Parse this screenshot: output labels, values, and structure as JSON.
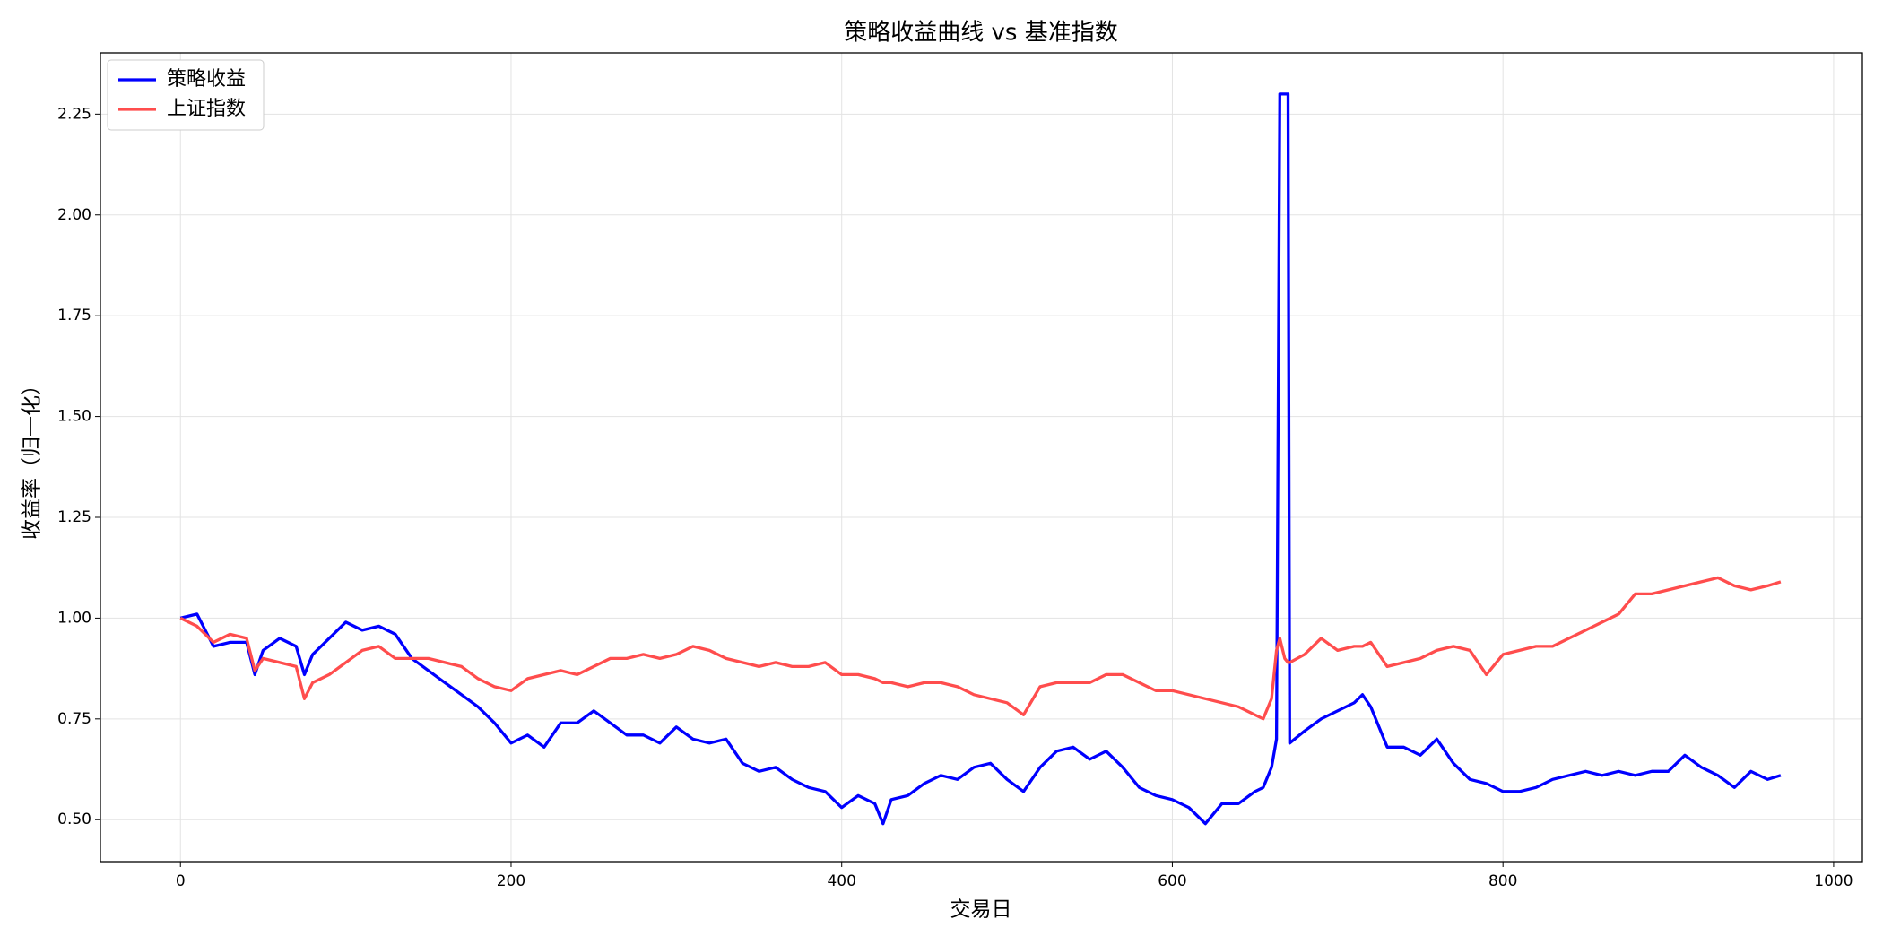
{
  "chart_data": {
    "type": "line",
    "title": "策略收益曲线 vs 基准指数",
    "xlabel": "交易日",
    "ylabel": "收益率（归一化）",
    "x": [
      0,
      10,
      20,
      30,
      40,
      45,
      50,
      60,
      70,
      75,
      80,
      90,
      100,
      110,
      120,
      130,
      140,
      150,
      160,
      170,
      180,
      190,
      200,
      210,
      220,
      230,
      240,
      250,
      260,
      270,
      280,
      290,
      300,
      310,
      320,
      330,
      340,
      350,
      360,
      370,
      380,
      390,
      400,
      410,
      420,
      425,
      430,
      440,
      450,
      460,
      470,
      480,
      490,
      500,
      510,
      520,
      530,
      540,
      550,
      560,
      570,
      580,
      590,
      600,
      610,
      620,
      630,
      640,
      650,
      655,
      660,
      663,
      665,
      668,
      670,
      671,
      680,
      690,
      700,
      710,
      715,
      720,
      730,
      740,
      750,
      760,
      770,
      780,
      790,
      800,
      810,
      820,
      830,
      840,
      850,
      860,
      870,
      880,
      890,
      900,
      910,
      920,
      930,
      940,
      950,
      960,
      968
    ],
    "series": [
      {
        "name": "策略收益",
        "color": "#0000ff",
        "values": [
          1.0,
          1.01,
          0.93,
          0.94,
          0.94,
          0.86,
          0.92,
          0.95,
          0.93,
          0.86,
          0.91,
          0.95,
          0.99,
          0.97,
          0.98,
          0.96,
          0.9,
          0.87,
          0.84,
          0.81,
          0.78,
          0.74,
          0.69,
          0.71,
          0.68,
          0.74,
          0.74,
          0.77,
          0.74,
          0.71,
          0.71,
          0.69,
          0.73,
          0.7,
          0.69,
          0.7,
          0.64,
          0.62,
          0.63,
          0.6,
          0.58,
          0.57,
          0.53,
          0.56,
          0.54,
          0.49,
          0.55,
          0.56,
          0.59,
          0.61,
          0.6,
          0.63,
          0.64,
          0.6,
          0.57,
          0.63,
          0.67,
          0.68,
          0.65,
          0.67,
          0.63,
          0.58,
          0.56,
          0.55,
          0.53,
          0.49,
          0.54,
          0.54,
          0.57,
          0.58,
          0.63,
          0.7,
          2.3,
          2.3,
          2.3,
          0.69,
          0.72,
          0.75,
          0.77,
          0.79,
          0.81,
          0.78,
          0.68,
          0.68,
          0.66,
          0.7,
          0.64,
          0.6,
          0.59,
          0.57,
          0.57,
          0.58,
          0.6,
          0.61,
          0.62,
          0.61,
          0.62,
          0.61,
          0.62,
          0.62,
          0.66,
          0.63,
          0.61,
          0.58,
          0.62,
          0.6,
          0.61
        ]
      },
      {
        "name": "上证指数",
        "color": "#ff4d4d",
        "values": [
          1.0,
          0.98,
          0.94,
          0.96,
          0.95,
          0.87,
          0.9,
          0.89,
          0.88,
          0.8,
          0.84,
          0.86,
          0.89,
          0.92,
          0.93,
          0.9,
          0.9,
          0.9,
          0.89,
          0.88,
          0.85,
          0.83,
          0.82,
          0.85,
          0.86,
          0.87,
          0.86,
          0.88,
          0.9,
          0.9,
          0.91,
          0.9,
          0.91,
          0.93,
          0.92,
          0.9,
          0.89,
          0.88,
          0.89,
          0.88,
          0.88,
          0.89,
          0.86,
          0.86,
          0.85,
          0.84,
          0.84,
          0.83,
          0.84,
          0.84,
          0.83,
          0.81,
          0.8,
          0.79,
          0.76,
          0.83,
          0.84,
          0.84,
          0.84,
          0.86,
          0.86,
          0.84,
          0.82,
          0.82,
          0.81,
          0.8,
          0.79,
          0.78,
          0.76,
          0.75,
          0.8,
          0.92,
          0.95,
          0.9,
          0.89,
          0.89,
          0.91,
          0.95,
          0.92,
          0.93,
          0.93,
          0.94,
          0.88,
          0.89,
          0.9,
          0.92,
          0.93,
          0.92,
          0.86,
          0.91,
          0.92,
          0.93,
          0.93,
          0.95,
          0.97,
          0.99,
          1.01,
          1.06,
          1.06,
          1.07,
          1.08,
          1.09,
          1.1,
          1.08,
          1.07,
          1.08,
          1.09
        ]
      }
    ],
    "xlim": [
      -48.4,
      1017.4
    ],
    "ylim": [
      0.396,
      2.402
    ],
    "xticks": [
      0,
      200,
      400,
      600,
      800,
      1000
    ],
    "yticks": [
      {
        "value": 0.5,
        "label": "0.50"
      },
      {
        "value": 0.75,
        "label": "0.75"
      },
      {
        "value": 1.0,
        "label": "1.00"
      },
      {
        "value": 1.25,
        "label": "1.25"
      },
      {
        "value": 1.5,
        "label": "1.50"
      },
      {
        "value": 1.75,
        "label": "1.75"
      },
      {
        "value": 2.0,
        "label": "2.00"
      },
      {
        "value": 2.25,
        "label": "2.25"
      }
    ],
    "grid": true,
    "legend": "upper left"
  }
}
